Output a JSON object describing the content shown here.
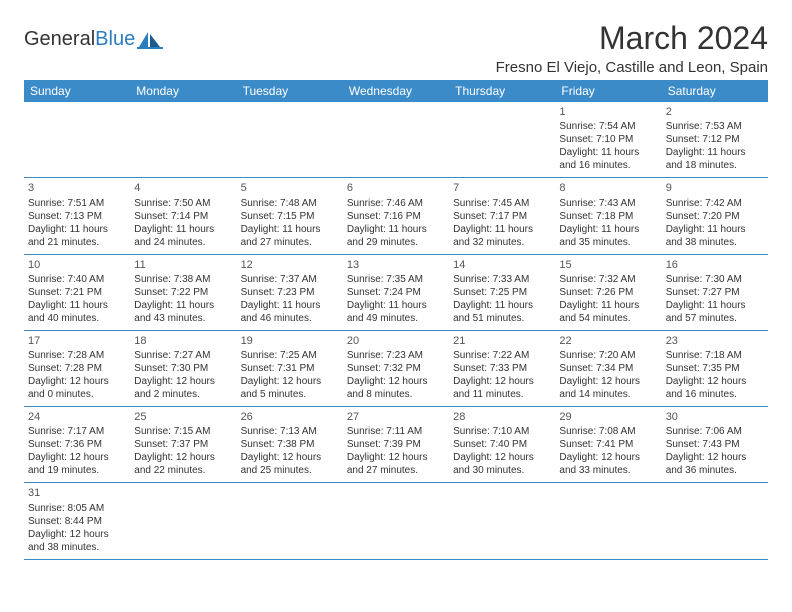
{
  "logo": {
    "general": "General",
    "blue": "Blue"
  },
  "title": "March 2024",
  "location": "Fresno El Viejo, Castille and Leon, Spain",
  "colors": {
    "header_bg": "#3b8bc9",
    "header_text": "#ffffff",
    "body_text": "#333333",
    "border": "#3b8bc9",
    "logo_blue": "#2b7bbf"
  },
  "weekdays": [
    "Sunday",
    "Monday",
    "Tuesday",
    "Wednesday",
    "Thursday",
    "Friday",
    "Saturday"
  ],
  "weeks": [
    [
      null,
      null,
      null,
      null,
      null,
      {
        "n": "1",
        "sr": "Sunrise: 7:54 AM",
        "ss": "Sunset: 7:10 PM",
        "dl": "Daylight: 11 hours and 16 minutes."
      },
      {
        "n": "2",
        "sr": "Sunrise: 7:53 AM",
        "ss": "Sunset: 7:12 PM",
        "dl": "Daylight: 11 hours and 18 minutes."
      }
    ],
    [
      {
        "n": "3",
        "sr": "Sunrise: 7:51 AM",
        "ss": "Sunset: 7:13 PM",
        "dl": "Daylight: 11 hours and 21 minutes."
      },
      {
        "n": "4",
        "sr": "Sunrise: 7:50 AM",
        "ss": "Sunset: 7:14 PM",
        "dl": "Daylight: 11 hours and 24 minutes."
      },
      {
        "n": "5",
        "sr": "Sunrise: 7:48 AM",
        "ss": "Sunset: 7:15 PM",
        "dl": "Daylight: 11 hours and 27 minutes."
      },
      {
        "n": "6",
        "sr": "Sunrise: 7:46 AM",
        "ss": "Sunset: 7:16 PM",
        "dl": "Daylight: 11 hours and 29 minutes."
      },
      {
        "n": "7",
        "sr": "Sunrise: 7:45 AM",
        "ss": "Sunset: 7:17 PM",
        "dl": "Daylight: 11 hours and 32 minutes."
      },
      {
        "n": "8",
        "sr": "Sunrise: 7:43 AM",
        "ss": "Sunset: 7:18 PM",
        "dl": "Daylight: 11 hours and 35 minutes."
      },
      {
        "n": "9",
        "sr": "Sunrise: 7:42 AM",
        "ss": "Sunset: 7:20 PM",
        "dl": "Daylight: 11 hours and 38 minutes."
      }
    ],
    [
      {
        "n": "10",
        "sr": "Sunrise: 7:40 AM",
        "ss": "Sunset: 7:21 PM",
        "dl": "Daylight: 11 hours and 40 minutes."
      },
      {
        "n": "11",
        "sr": "Sunrise: 7:38 AM",
        "ss": "Sunset: 7:22 PM",
        "dl": "Daylight: 11 hours and 43 minutes."
      },
      {
        "n": "12",
        "sr": "Sunrise: 7:37 AM",
        "ss": "Sunset: 7:23 PM",
        "dl": "Daylight: 11 hours and 46 minutes."
      },
      {
        "n": "13",
        "sr": "Sunrise: 7:35 AM",
        "ss": "Sunset: 7:24 PM",
        "dl": "Daylight: 11 hours and 49 minutes."
      },
      {
        "n": "14",
        "sr": "Sunrise: 7:33 AM",
        "ss": "Sunset: 7:25 PM",
        "dl": "Daylight: 11 hours and 51 minutes."
      },
      {
        "n": "15",
        "sr": "Sunrise: 7:32 AM",
        "ss": "Sunset: 7:26 PM",
        "dl": "Daylight: 11 hours and 54 minutes."
      },
      {
        "n": "16",
        "sr": "Sunrise: 7:30 AM",
        "ss": "Sunset: 7:27 PM",
        "dl": "Daylight: 11 hours and 57 minutes."
      }
    ],
    [
      {
        "n": "17",
        "sr": "Sunrise: 7:28 AM",
        "ss": "Sunset: 7:28 PM",
        "dl": "Daylight: 12 hours and 0 minutes."
      },
      {
        "n": "18",
        "sr": "Sunrise: 7:27 AM",
        "ss": "Sunset: 7:30 PM",
        "dl": "Daylight: 12 hours and 2 minutes."
      },
      {
        "n": "19",
        "sr": "Sunrise: 7:25 AM",
        "ss": "Sunset: 7:31 PM",
        "dl": "Daylight: 12 hours and 5 minutes."
      },
      {
        "n": "20",
        "sr": "Sunrise: 7:23 AM",
        "ss": "Sunset: 7:32 PM",
        "dl": "Daylight: 12 hours and 8 minutes."
      },
      {
        "n": "21",
        "sr": "Sunrise: 7:22 AM",
        "ss": "Sunset: 7:33 PM",
        "dl": "Daylight: 12 hours and 11 minutes."
      },
      {
        "n": "22",
        "sr": "Sunrise: 7:20 AM",
        "ss": "Sunset: 7:34 PM",
        "dl": "Daylight: 12 hours and 14 minutes."
      },
      {
        "n": "23",
        "sr": "Sunrise: 7:18 AM",
        "ss": "Sunset: 7:35 PM",
        "dl": "Daylight: 12 hours and 16 minutes."
      }
    ],
    [
      {
        "n": "24",
        "sr": "Sunrise: 7:17 AM",
        "ss": "Sunset: 7:36 PM",
        "dl": "Daylight: 12 hours and 19 minutes."
      },
      {
        "n": "25",
        "sr": "Sunrise: 7:15 AM",
        "ss": "Sunset: 7:37 PM",
        "dl": "Daylight: 12 hours and 22 minutes."
      },
      {
        "n": "26",
        "sr": "Sunrise: 7:13 AM",
        "ss": "Sunset: 7:38 PM",
        "dl": "Daylight: 12 hours and 25 minutes."
      },
      {
        "n": "27",
        "sr": "Sunrise: 7:11 AM",
        "ss": "Sunset: 7:39 PM",
        "dl": "Daylight: 12 hours and 27 minutes."
      },
      {
        "n": "28",
        "sr": "Sunrise: 7:10 AM",
        "ss": "Sunset: 7:40 PM",
        "dl": "Daylight: 12 hours and 30 minutes."
      },
      {
        "n": "29",
        "sr": "Sunrise: 7:08 AM",
        "ss": "Sunset: 7:41 PM",
        "dl": "Daylight: 12 hours and 33 minutes."
      },
      {
        "n": "30",
        "sr": "Sunrise: 7:06 AM",
        "ss": "Sunset: 7:43 PM",
        "dl": "Daylight: 12 hours and 36 minutes."
      }
    ],
    [
      {
        "n": "31",
        "sr": "Sunrise: 8:05 AM",
        "ss": "Sunset: 8:44 PM",
        "dl": "Daylight: 12 hours and 38 minutes."
      },
      null,
      null,
      null,
      null,
      null,
      null
    ]
  ]
}
